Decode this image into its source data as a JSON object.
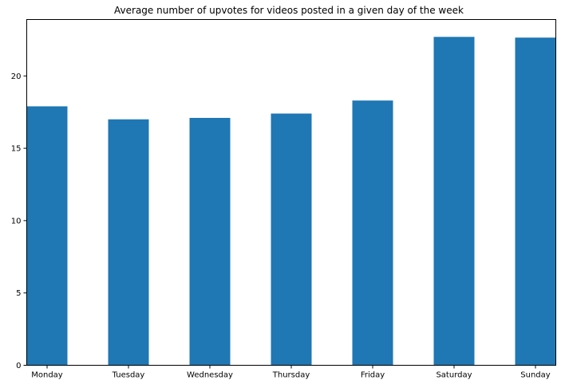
{
  "chart_data": {
    "type": "bar",
    "title": "Average number of upvotes for videos posted in a given day of the week",
    "xlabel": "",
    "ylabel": "",
    "categories": [
      "Monday",
      "Tuesday",
      "Wednesday",
      "Thursday",
      "Friday",
      "Saturday",
      "Sunday"
    ],
    "values": [
      17.9,
      17.0,
      17.1,
      17.4,
      18.3,
      22.7,
      22.65
    ],
    "ylim": [
      0,
      23.9
    ],
    "yticks": [
      0,
      5,
      10,
      15,
      20
    ],
    "ytick_labels": [
      "0",
      "5",
      "10",
      "15",
      "20"
    ],
    "grid": false,
    "bar_color": "#1f77b4"
  }
}
